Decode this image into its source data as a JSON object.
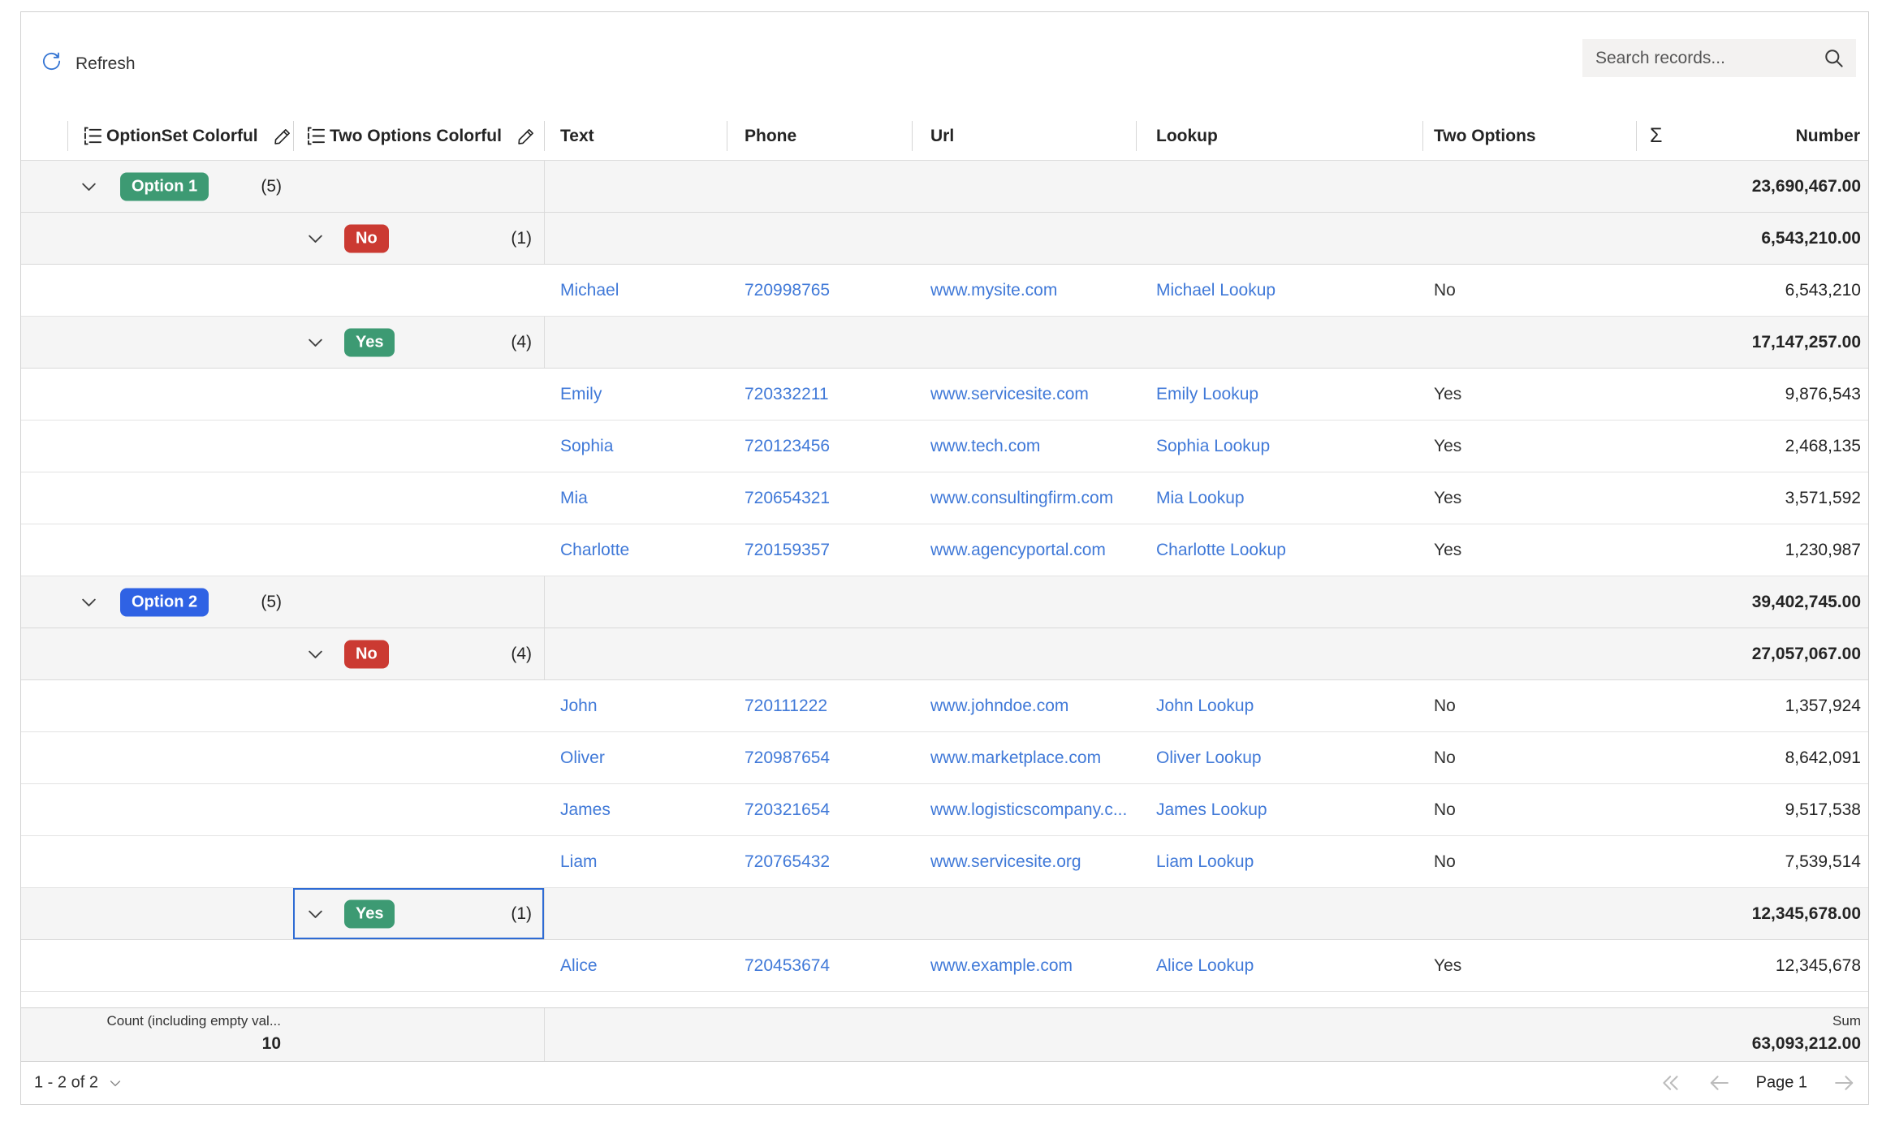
{
  "colors": {
    "link": "#4079d8",
    "badge_green": "#3d9a73",
    "badge_red": "#cb3a32",
    "badge_blue": "#2f62e4",
    "selection": "#2e6bd4",
    "refresh_icon": "#3575d3"
  },
  "toolbar": {
    "refresh_label": "Refresh",
    "search_placeholder": "Search records..."
  },
  "grid": {
    "columns": [
      {
        "id": "optionset_colorful",
        "label": "OptionSet Colorful"
      },
      {
        "id": "two_options_colorful",
        "label": "Two Options Colorful"
      },
      {
        "id": "text",
        "label": "Text"
      },
      {
        "id": "phone",
        "label": "Phone"
      },
      {
        "id": "url",
        "label": "Url"
      },
      {
        "id": "lookup",
        "label": "Lookup"
      },
      {
        "id": "two_options",
        "label": "Two Options"
      },
      {
        "id": "aggregation",
        "label": "Σ"
      },
      {
        "id": "number",
        "label": "Number"
      }
    ],
    "rows": [
      {
        "type": "group",
        "level": 1,
        "badge": "Option 1",
        "badge_color": "badge_green",
        "count": "(5)",
        "sum": "23,690,467.00"
      },
      {
        "type": "group",
        "level": 2,
        "badge": "No",
        "badge_color": "badge_red",
        "count": "(1)",
        "sum": "6,543,210.00"
      },
      {
        "type": "record",
        "text": "Michael",
        "phone": "720998765",
        "url": "www.mysite.com",
        "lookup": "Michael Lookup",
        "two_options": "No",
        "number": "6,543,210"
      },
      {
        "type": "group",
        "level": 2,
        "badge": "Yes",
        "badge_color": "badge_green",
        "count": "(4)",
        "sum": "17,147,257.00"
      },
      {
        "type": "record",
        "text": "Emily",
        "phone": "720332211",
        "url": "www.servicesite.com",
        "lookup": "Emily Lookup",
        "two_options": "Yes",
        "number": "9,876,543"
      },
      {
        "type": "record",
        "text": "Sophia",
        "phone": "720123456",
        "url": "www.tech.com",
        "lookup": "Sophia Lookup",
        "two_options": "Yes",
        "number": "2,468,135"
      },
      {
        "type": "record",
        "text": "Mia",
        "phone": "720654321",
        "url": "www.consultingfirm.com",
        "lookup": "Mia Lookup",
        "two_options": "Yes",
        "number": "3,571,592"
      },
      {
        "type": "record",
        "text": "Charlotte",
        "phone": "720159357",
        "url": "www.agencyportal.com",
        "lookup": "Charlotte Lookup",
        "two_options": "Yes",
        "number": "1,230,987"
      },
      {
        "type": "group",
        "level": 1,
        "badge": "Option 2",
        "badge_color": "badge_blue",
        "count": "(5)",
        "sum": "39,402,745.00"
      },
      {
        "type": "group",
        "level": 2,
        "badge": "No",
        "badge_color": "badge_red",
        "count": "(4)",
        "sum": "27,057,067.00"
      },
      {
        "type": "record",
        "text": "John",
        "phone": "720111222",
        "url": "www.johndoe.com",
        "lookup": "John Lookup",
        "two_options": "No",
        "number": "1,357,924"
      },
      {
        "type": "record",
        "text": "Oliver",
        "phone": "720987654",
        "url": "www.marketplace.com",
        "lookup": "Oliver Lookup",
        "two_options": "No",
        "number": "8,642,091"
      },
      {
        "type": "record",
        "text": "James",
        "phone": "720321654",
        "url": "www.logisticscompany.c...",
        "lookup": "James Lookup",
        "two_options": "No",
        "number": "9,517,538"
      },
      {
        "type": "record",
        "text": "Liam",
        "phone": "720765432",
        "url": "www.servicesite.org",
        "lookup": "Liam Lookup",
        "two_options": "No",
        "number": "7,539,514"
      },
      {
        "type": "group",
        "level": 2,
        "badge": "Yes",
        "badge_color": "badge_green",
        "count": "(1)",
        "sum": "12,345,678.00",
        "selected": true
      },
      {
        "type": "record",
        "text": "Alice",
        "phone": "720453674",
        "url": "www.example.com",
        "lookup": "Alice Lookup",
        "two_options": "Yes",
        "number": "12,345,678"
      }
    ]
  },
  "footer": {
    "count_label": "Count (including empty val...",
    "count_value": "10",
    "sum_label": "Sum",
    "sum_value": "63,093,212.00"
  },
  "pager": {
    "range": "1 - 2 of 2",
    "page": "Page 1"
  }
}
